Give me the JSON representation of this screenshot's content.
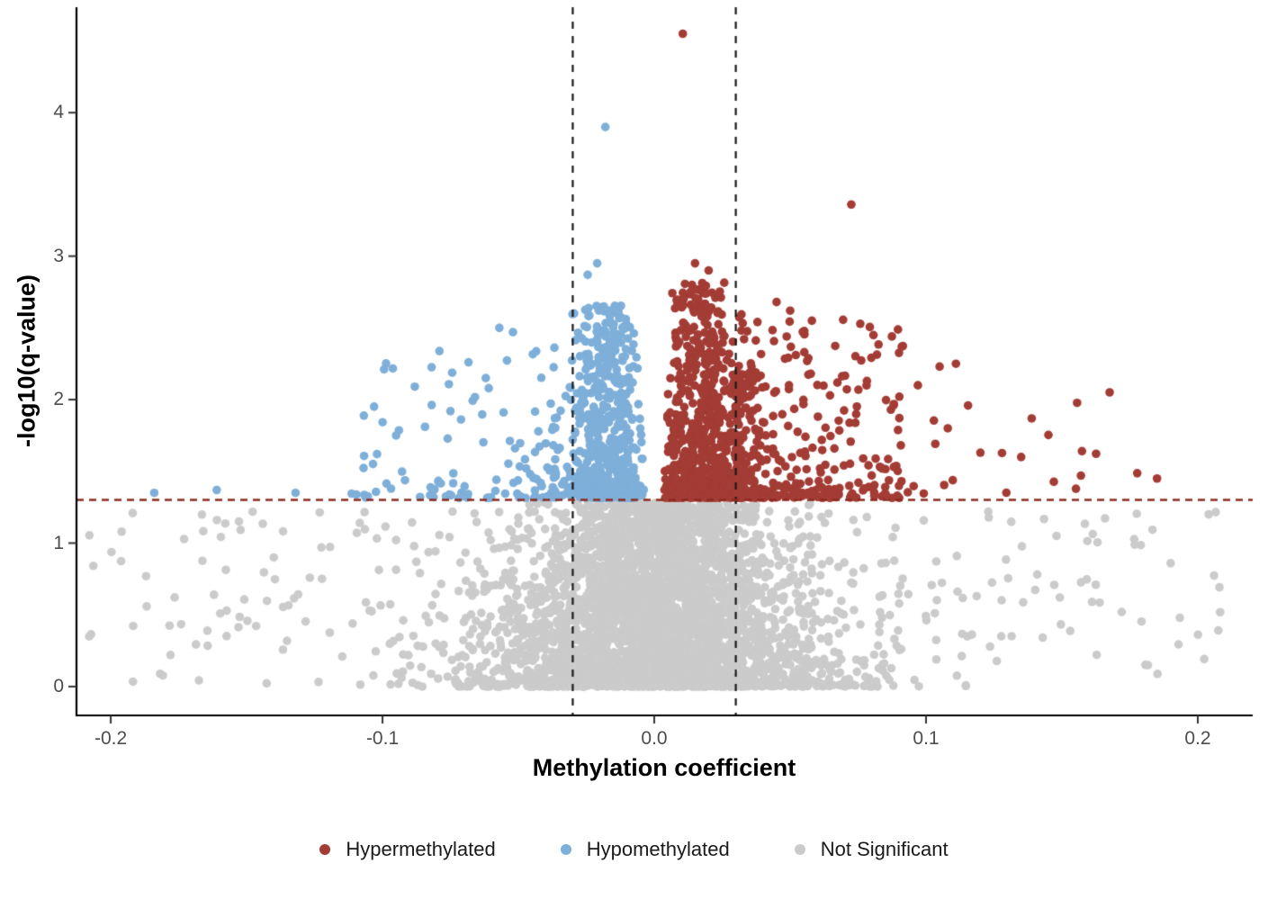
{
  "chart_data": {
    "type": "scatter",
    "subtype": "volcano",
    "title": "",
    "xlabel": "Methylation coefficient",
    "ylabel": "-log10(q-value)",
    "xlim": [
      -0.2126,
      0.2202
    ],
    "ylim": [
      -0.201,
      4.735
    ],
    "grid": false,
    "x_ticks": {
      "values": [
        -0.2,
        -0.1,
        0.0,
        0.1,
        0.2
      ],
      "labels": [
        "-0.2",
        "-0.1",
        "0.0",
        "0.1",
        "0.2"
      ]
    },
    "y_ticks": {
      "values": [
        0,
        1,
        2,
        3,
        4
      ],
      "labels": [
        "0",
        "1",
        "2",
        "3",
        "4"
      ]
    },
    "thresholds": {
      "vlines": {
        "values": [
          -0.03,
          0.03
        ],
        "color": "#1a1a1a",
        "dash": [
          8,
          8
        ]
      },
      "hline": {
        "value": 1.301,
        "color": "#8e2b20",
        "dash": [
          8,
          6
        ]
      }
    },
    "legend": {
      "position": "bottom",
      "entries": [
        {
          "label": "Hypermethylated",
          "color": "#a33c35"
        },
        {
          "label": "Hypomethylated",
          "color": "#7eafd9"
        },
        {
          "label": "Not Significant",
          "color": "#cbcbcb"
        }
      ]
    },
    "point_radius": 4.8,
    "point_opacity": 1.0,
    "seed": 7,
    "series": [
      {
        "name": "Not Significant",
        "color": "#cbcbcb",
        "clusters": [
          {
            "n": 2400,
            "x": {
              "kind": "normal",
              "mean": 0,
              "sd": 0.034,
              "clip": [
                -0.205,
                0.21
              ]
            },
            "y": {
              "kind": "power",
              "base": 0.0,
              "span": 1.285,
              "pow": 2.1
            },
            "shrink": 0.45
          },
          {
            "n": 1300,
            "x": {
              "kind": "normal",
              "mean": 0,
              "sd": 0.031,
              "clip": [
                -0.19,
                0.19
              ]
            },
            "y": {
              "kind": "uniform",
              "base": 0.0,
              "span": 1.285,
              "pow": 1
            },
            "shrink": 0.38
          },
          {
            "n": 300,
            "x": {
              "kind": "edges",
              "base": 0.05,
              "span": 0.16,
              "pow": 1.7
            },
            "y": {
              "kind": "uniform",
              "base": 0.02,
              "span": 1.2,
              "pow": 1
            },
            "shrink": 0
          }
        ],
        "outliers": [
          [
            -0.196,
            1.08
          ],
          [
            -0.187,
            0.77
          ],
          [
            0.204,
            1.2
          ],
          [
            -0.162,
            0.64
          ],
          [
            0.148,
            1.05
          ],
          [
            0.172,
            0.52
          ],
          [
            0.19,
            0.86
          ],
          [
            -0.14,
            0.9
          ]
        ]
      },
      {
        "name": "Hypomethylated",
        "color": "#7eafd9",
        "clusters": [
          {
            "n": 560,
            "x": {
              "kind": "normal",
              "mean": -0.0175,
              "sd": 0.0085,
              "clip": [
                -0.038,
                -0.0035
              ]
            },
            "y": {
              "kind": "power",
              "base": 1.315,
              "span": 1.35,
              "pow": 1.9
            },
            "shrink": 0.25
          },
          {
            "n": 115,
            "x": {
              "kind": "tail",
              "base": 0.036,
              "span": 0.078,
              "pow": 1.9,
              "sign": -1
            },
            "y": {
              "kind": "power",
              "base": 1.315,
              "span": 1.05,
              "pow": 2.4
            },
            "shrink": 0
          }
        ],
        "outliers": [
          [
            -0.018,
            3.9
          ],
          [
            -0.021,
            2.95
          ],
          [
            -0.0245,
            2.87
          ],
          [
            -0.0295,
            2.6
          ],
          [
            -0.057,
            2.5
          ],
          [
            -0.052,
            2.47
          ],
          [
            -0.062,
            2.15
          ],
          [
            -0.075,
            1.92
          ],
          [
            -0.095,
            1.75
          ],
          [
            -0.102,
            1.62
          ],
          [
            -0.132,
            1.35
          ],
          [
            -0.161,
            1.37
          ],
          [
            -0.184,
            1.35
          ]
        ]
      },
      {
        "name": "Hypermethylated",
        "color": "#a33c35",
        "clusters": [
          {
            "n": 650,
            "x": {
              "kind": "normal",
              "mean": 0.018,
              "sd": 0.009,
              "clip": [
                0.0035,
                0.042
              ]
            },
            "y": {
              "kind": "power",
              "base": 1.315,
              "span": 1.5,
              "pow": 1.9
            },
            "shrink": 0.22
          },
          {
            "n": 300,
            "x": {
              "kind": "tail",
              "base": 0.03,
              "span": 0.062,
              "pow": 1.8,
              "sign": 1
            },
            "y": {
              "kind": "power",
              "base": 1.315,
              "span": 1.25,
              "pow": 2.1
            },
            "shrink": 0
          },
          {
            "n": 22,
            "x": {
              "kind": "tail",
              "base": 0.09,
              "span": 0.09,
              "pow": 1.5,
              "sign": 1
            },
            "y": {
              "kind": "power",
              "base": 1.315,
              "span": 0.75,
              "pow": 2.3
            },
            "shrink": 0
          }
        ],
        "outliers": [
          [
            0.0105,
            4.55
          ],
          [
            0.0725,
            3.36
          ],
          [
            0.105,
            2.23
          ],
          [
            0.097,
            2.1
          ],
          [
            0.111,
            2.25
          ],
          [
            0.108,
            1.8
          ],
          [
            0.12,
            1.63
          ],
          [
            0.135,
            1.6
          ],
          [
            0.157,
            1.47
          ],
          [
            0.185,
            1.45
          ],
          [
            0.05,
            2.62
          ],
          [
            0.058,
            2.55
          ],
          [
            0.045,
            2.68
          ],
          [
            0.015,
            2.95
          ],
          [
            0.02,
            2.9
          ]
        ]
      }
    ]
  }
}
